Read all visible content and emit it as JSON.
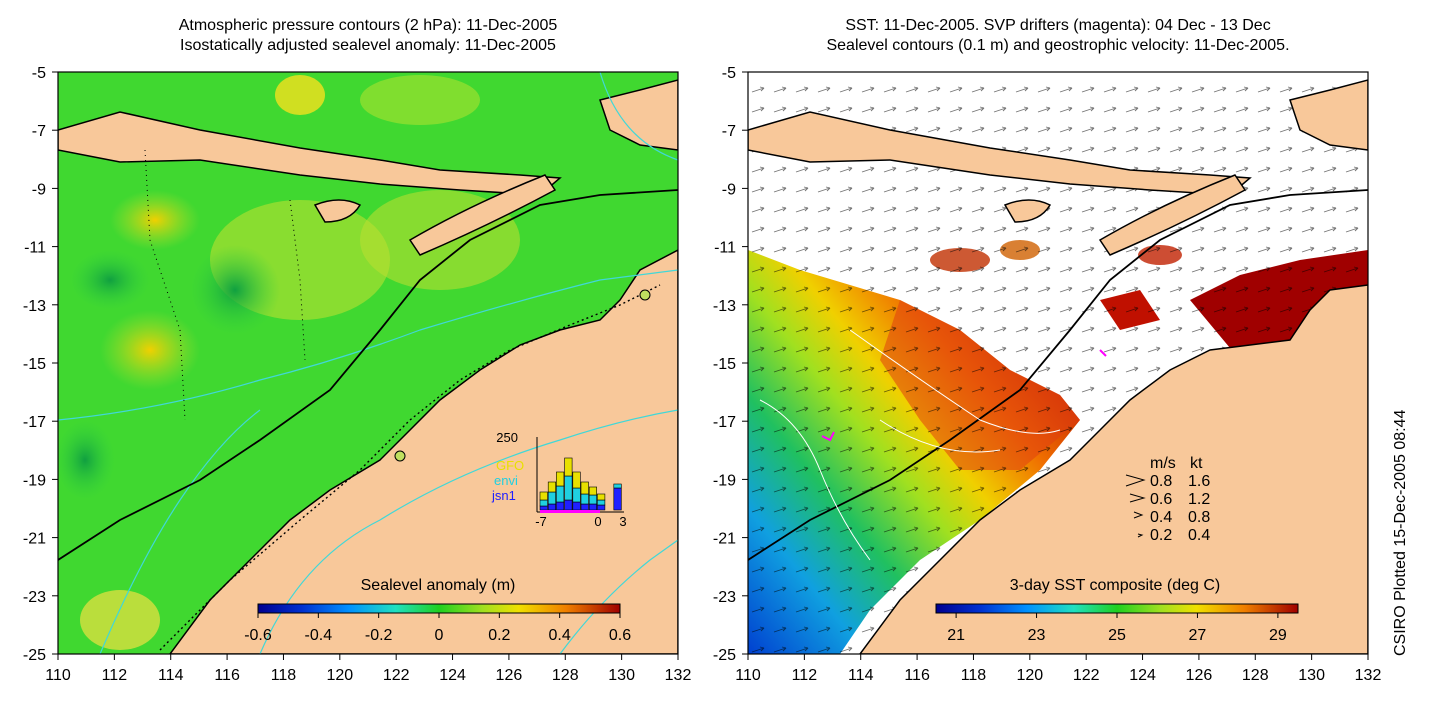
{
  "left_panel": {
    "title_line1": "Atmospheric pressure contours (2 hPa): 11-Dec-2005",
    "title_line2": "Isostatically adjusted sealevel anomaly: 11-Dec-2005",
    "colorbar": {
      "label": "Sealevel anomaly (m)",
      "ticks": [
        "-0.6",
        "-0.4",
        "-0.2",
        "0",
        "0.2",
        "0.4",
        "0.6"
      ],
      "range": [
        -0.6,
        0.6
      ]
    },
    "histogram": {
      "ymax_label": "250",
      "x_ticks": [
        "-7",
        "0",
        "3"
      ],
      "legend": [
        {
          "name": "GFO",
          "color": "#e8e000"
        },
        {
          "name": "envi",
          "color": "#20d0e0"
        },
        {
          "name": "jsn1",
          "color": "#2020ff"
        }
      ]
    }
  },
  "right_panel": {
    "title_line1": "SST: 11-Dec-2005. SVP drifters (magenta): 04 Dec - 13 Dec",
    "title_line2": "Sealevel contours (0.1 m) and geostrophic velocity: 11-Dec-2005.",
    "colorbar": {
      "label": "3-day SST composite (deg C)",
      "ticks": [
        "21",
        "23",
        "25",
        "27",
        "29"
      ],
      "range": [
        20.5,
        29.5
      ]
    },
    "velocity_legend": {
      "header": [
        "m/s",
        "kt"
      ],
      "rows": [
        [
          "0.8",
          "1.6"
        ],
        [
          "0.6",
          "1.2"
        ],
        [
          "0.4",
          "0.8"
        ],
        [
          "0.2",
          "0.4"
        ]
      ]
    }
  },
  "axes": {
    "x_ticks": [
      "110",
      "112",
      "114",
      "116",
      "118",
      "120",
      "122",
      "124",
      "126",
      "128",
      "130",
      "132"
    ],
    "y_ticks": [
      "-5",
      "-7",
      "-9",
      "-11",
      "-13",
      "-15",
      "-17",
      "-19",
      "-21",
      "-23",
      "-25"
    ],
    "xlim": [
      110,
      132
    ],
    "ylim": [
      -25,
      -5
    ]
  },
  "credit": "CSIRO Plotted 15-Dec-2005 08:44",
  "colors": {
    "land": "#f8c89a",
    "ocean_green": "#40d830",
    "contour_cyan": "#40d8d8",
    "sst_warm": "#c01000"
  }
}
